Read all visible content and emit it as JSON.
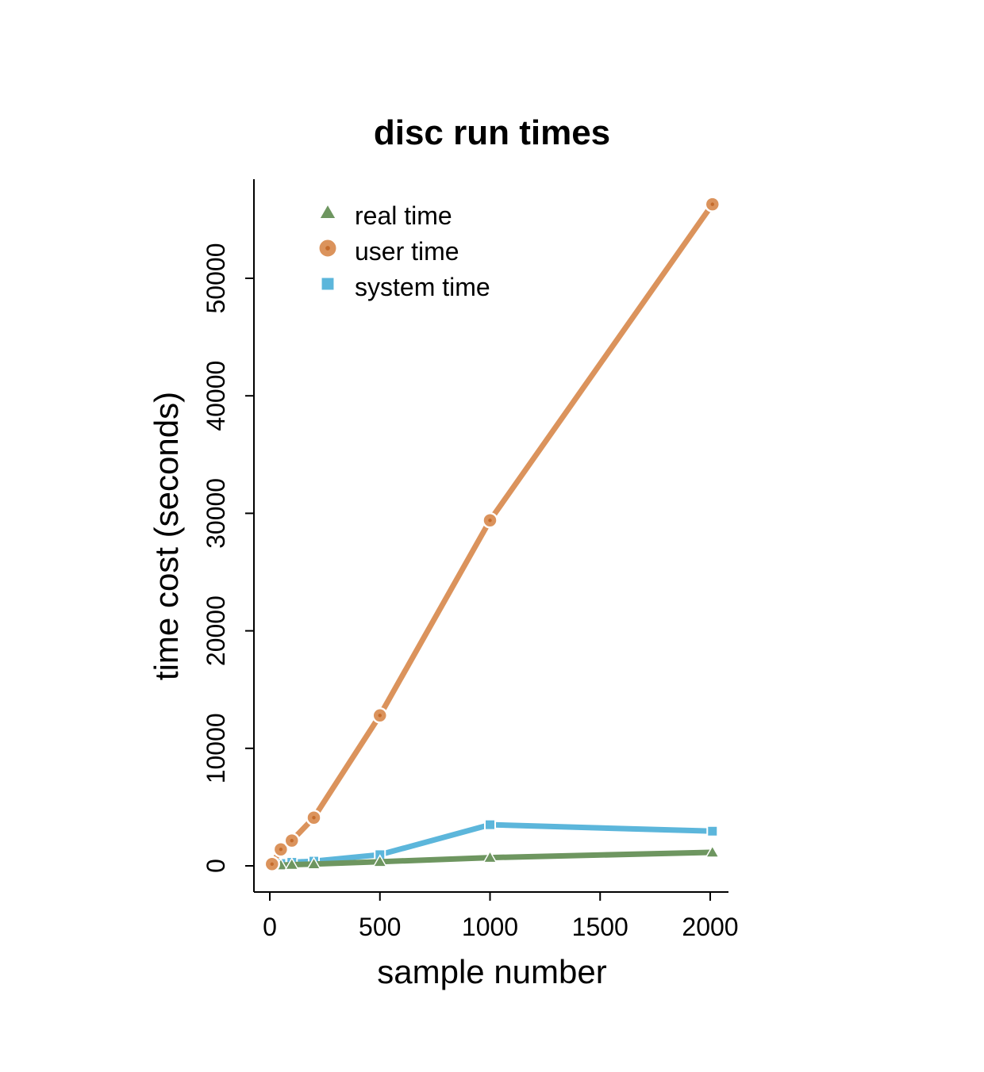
{
  "chart_data": {
    "type": "line",
    "title": "disc run times",
    "xlabel": "sample number",
    "ylabel": "time cost (seconds)",
    "xlim": [
      0,
      2000
    ],
    "ylim": [
      0,
      55000
    ],
    "x_ticks": [
      0,
      500,
      1000,
      1500,
      2000
    ],
    "x_tick_labels": [
      "0",
      "500",
      "1000",
      "1500",
      "2000"
    ],
    "y_ticks": [
      0,
      10000,
      20000,
      30000,
      40000,
      50000
    ],
    "y_tick_labels": [
      "0",
      "10000",
      "20000",
      "30000",
      "40000",
      "50000"
    ],
    "grid": false,
    "legend_position": "top-left",
    "series": [
      {
        "name": "real time",
        "marker": "triangle",
        "color": "#6e9660",
        "x": [
          10,
          50,
          100,
          200,
          500,
          1000,
          2010
        ],
        "y": [
          30,
          60,
          100,
          150,
          350,
          700,
          1150
        ]
      },
      {
        "name": "user time",
        "marker": "circle",
        "color": "#db935c",
        "x": [
          10,
          50,
          100,
          200,
          500,
          1000,
          2010
        ],
        "y": [
          150,
          1400,
          2150,
          4100,
          12800,
          29400,
          56300
        ]
      },
      {
        "name": "system time",
        "marker": "square",
        "color": "#5cb6db",
        "x": [
          10,
          50,
          100,
          200,
          500,
          1000,
          2010
        ],
        "y": [
          50,
          200,
          300,
          400,
          950,
          3500,
          2950
        ]
      }
    ]
  }
}
